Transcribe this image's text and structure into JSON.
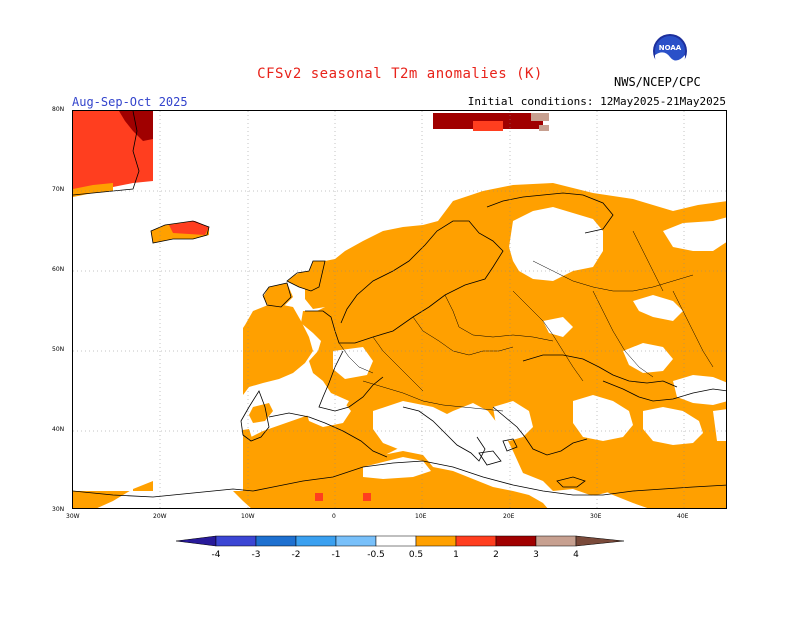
{
  "title": "CFSv2 seasonal T2m anomalies (K)",
  "season": "Aug-Sep-Oct 2025",
  "initial_conditions": "Initial conditions: 12May2025-21May2025",
  "agency": "NWS/NCEP/CPC",
  "logo_text": "NOAA",
  "colors": {
    "orange": "#ffa000",
    "red_orange": "#ff3e1f",
    "red": "#e8231b",
    "dark_red": "#a00000",
    "tan": "#c7a090",
    "brown": "#7a4a3a",
    "blue1": "#281a9a",
    "blue2": "#3b46d4",
    "blue3": "#1e70d0",
    "blue4": "#3aa0f0",
    "blue5": "#78c0fa"
  },
  "lat_labels": [
    "80N",
    "70N",
    "60N",
    "50N",
    "40N",
    "30N"
  ],
  "lon_labels": [
    "30W",
    "20W",
    "10W",
    "0",
    "10E",
    "20E",
    "30E",
    "40E"
  ],
  "colorbar_labels": [
    "-4",
    "-3",
    "-2",
    "-1",
    "-0.5",
    "0.5",
    "1",
    "2",
    "3",
    "4"
  ]
}
